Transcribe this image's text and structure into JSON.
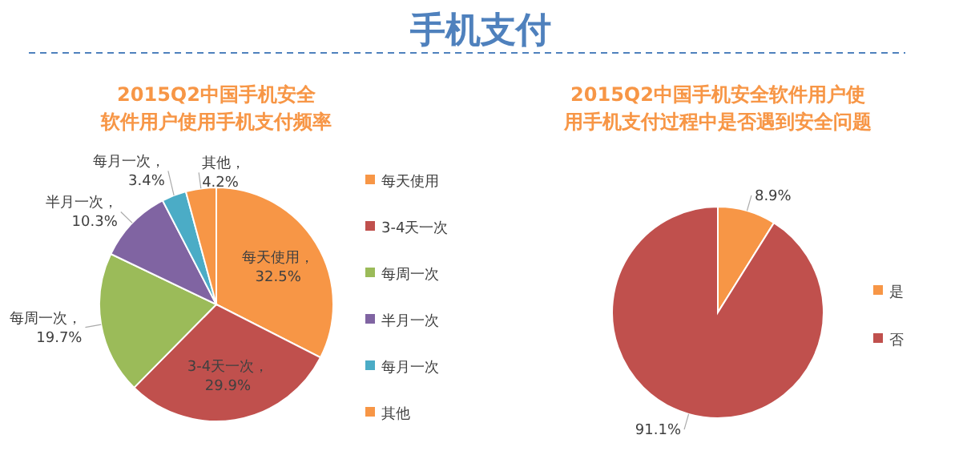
{
  "chart_data": [
    {
      "type": "pie",
      "title": "2015Q2中国手机安全软件用户使用手机支付频率",
      "annotations": [
        "手机支付"
      ],
      "categories": [
        "每天使用",
        "3-4天一次",
        "每周一次",
        "半月一次",
        "每月一次",
        "其他"
      ],
      "values": [
        32.5,
        29.9,
        19.7,
        10.3,
        3.4,
        4.2
      ],
      "value_labels": [
        "每天使用， 32.5%",
        "3-4天一次， 29.9%",
        "每周一次， 19.7%",
        "半月一次， 10.3%",
        "每月一次， 3.4%",
        "其他， 4.2%"
      ],
      "colors": [
        "#f79646",
        "#c0504d",
        "#9bbb59",
        "#8064a2",
        "#4bacc6",
        "#f79646"
      ],
      "legend": "right"
    },
    {
      "type": "pie",
      "title": "2015Q2中国手机安全软件用户使用手机支付过程中是否遇到安全问题",
      "categories": [
        "是",
        "否"
      ],
      "values": [
        8.9,
        91.1
      ],
      "value_labels": [
        "8.9%",
        "91.1%"
      ],
      "colors": [
        "#f79646",
        "#c0504d"
      ],
      "legend": "right"
    }
  ]
}
